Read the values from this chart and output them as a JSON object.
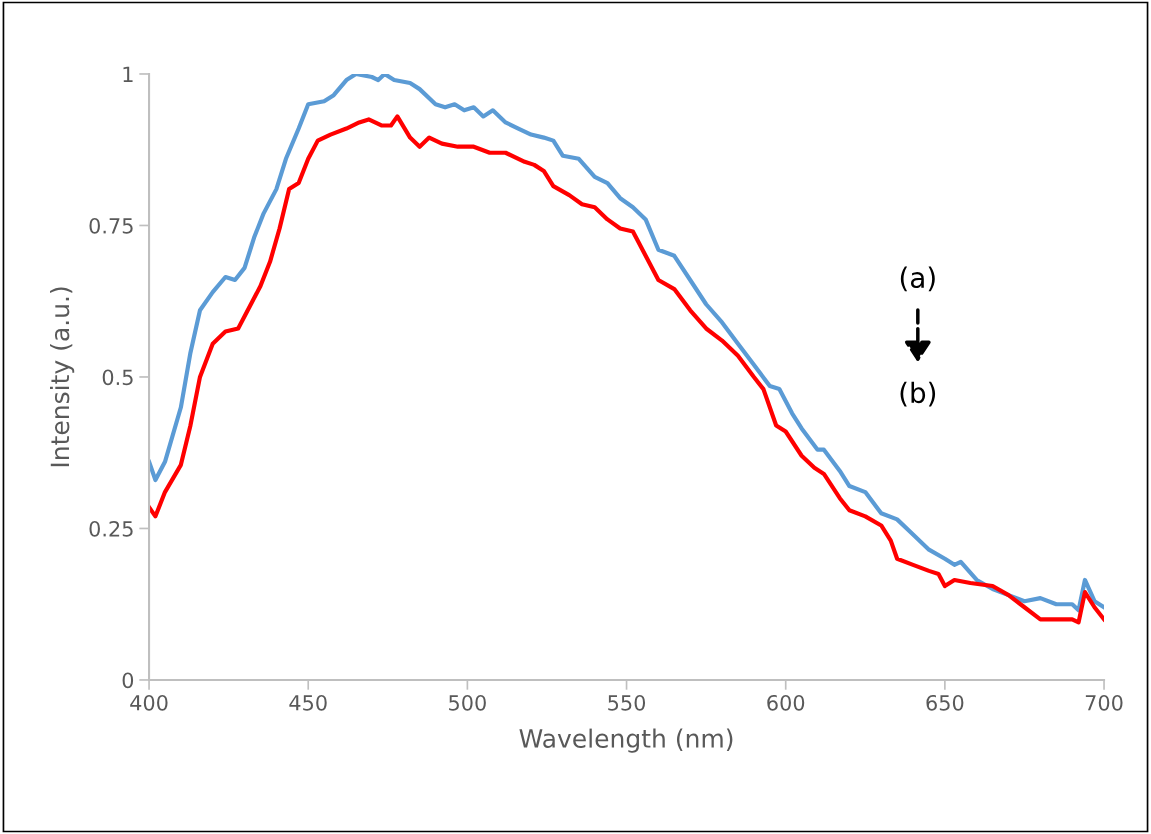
{
  "chart_data": {
    "type": "line",
    "xlabel": "Wavelength (nm)",
    "ylabel": "Intensity (a.u.)",
    "xlim": [
      400,
      700
    ],
    "xticks": [
      400,
      450,
      500,
      550,
      600,
      650,
      700
    ],
    "ylim": [
      0,
      1
    ],
    "yticks": [
      0,
      0.25,
      0.5,
      0.75,
      1
    ],
    "grid": false,
    "marker": "none",
    "line_style": "solid",
    "annotations": [
      "(a)",
      "(b)"
    ],
    "series": [
      {
        "color": "#5b9bd5",
        "x": [
          400,
          402,
          405,
          410,
          413,
          416,
          420,
          424,
          427,
          430,
          433,
          436,
          440,
          443,
          447,
          450,
          455,
          458,
          462,
          465,
          470,
          472,
          474,
          477,
          482,
          485,
          490,
          493,
          496,
          499,
          502,
          505,
          508,
          512,
          516,
          520,
          524,
          527,
          530,
          535,
          540,
          544,
          548,
          552,
          556,
          560,
          565,
          570,
          575,
          580,
          585,
          590,
          595,
          598,
          602,
          605,
          610,
          612,
          617,
          620,
          625,
          630,
          635,
          640,
          645,
          650,
          653,
          655,
          660,
          665,
          670,
          675,
          680,
          685,
          690,
          692,
          694,
          697,
          700
        ],
        "values": [
          0.36,
          0.33,
          0.36,
          0.45,
          0.54,
          0.61,
          0.64,
          0.665,
          0.66,
          0.68,
          0.73,
          0.77,
          0.81,
          0.86,
          0.91,
          0.95,
          0.955,
          0.965,
          0.99,
          1.0,
          0.995,
          0.99,
          1.0,
          0.99,
          0.985,
          0.975,
          0.95,
          0.945,
          0.95,
          0.94,
          0.945,
          0.93,
          0.94,
          0.92,
          0.91,
          0.9,
          0.895,
          0.89,
          0.865,
          0.86,
          0.83,
          0.82,
          0.795,
          0.78,
          0.76,
          0.71,
          0.7,
          0.66,
          0.62,
          0.59,
          0.555,
          0.52,
          0.485,
          0.48,
          0.44,
          0.415,
          0.38,
          0.38,
          0.345,
          0.32,
          0.31,
          0.275,
          0.265,
          0.24,
          0.215,
          0.2,
          0.19,
          0.195,
          0.165,
          0.15,
          0.14,
          0.13,
          0.135,
          0.125,
          0.125,
          0.115,
          0.165,
          0.13,
          0.12
        ]
      },
      {
        "color": "#ff0000",
        "x": [
          400,
          402,
          405,
          410,
          413,
          416,
          420,
          424,
          428,
          431,
          435,
          438,
          441,
          444,
          447,
          450,
          453,
          457,
          462,
          466,
          469,
          473,
          476,
          478,
          482,
          485,
          488,
          492,
          497,
          502,
          507,
          512,
          518,
          521,
          524,
          527,
          532,
          536,
          540,
          544,
          548,
          552,
          556,
          560,
          565,
          570,
          575,
          580,
          585,
          590,
          593,
          597,
          600,
          605,
          609,
          612,
          617,
          620,
          625,
          630,
          633,
          635,
          640,
          645,
          648,
          650,
          653,
          658,
          665,
          670,
          675,
          680,
          685,
          690,
          692,
          694,
          697,
          700
        ],
        "values": [
          0.285,
          0.27,
          0.31,
          0.355,
          0.42,
          0.5,
          0.555,
          0.575,
          0.58,
          0.61,
          0.65,
          0.69,
          0.745,
          0.81,
          0.82,
          0.86,
          0.89,
          0.9,
          0.91,
          0.92,
          0.925,
          0.915,
          0.915,
          0.93,
          0.895,
          0.88,
          0.895,
          0.885,
          0.88,
          0.88,
          0.87,
          0.87,
          0.855,
          0.85,
          0.84,
          0.815,
          0.8,
          0.785,
          0.78,
          0.76,
          0.745,
          0.74,
          0.7,
          0.66,
          0.645,
          0.61,
          0.58,
          0.56,
          0.535,
          0.5,
          0.48,
          0.42,
          0.41,
          0.37,
          0.35,
          0.34,
          0.3,
          0.28,
          0.27,
          0.255,
          0.23,
          0.2,
          0.19,
          0.18,
          0.175,
          0.155,
          0.165,
          0.16,
          0.155,
          0.14,
          0.12,
          0.1,
          0.1,
          0.1,
          0.095,
          0.145,
          0.12,
          0.1
        ]
      }
    ]
  }
}
